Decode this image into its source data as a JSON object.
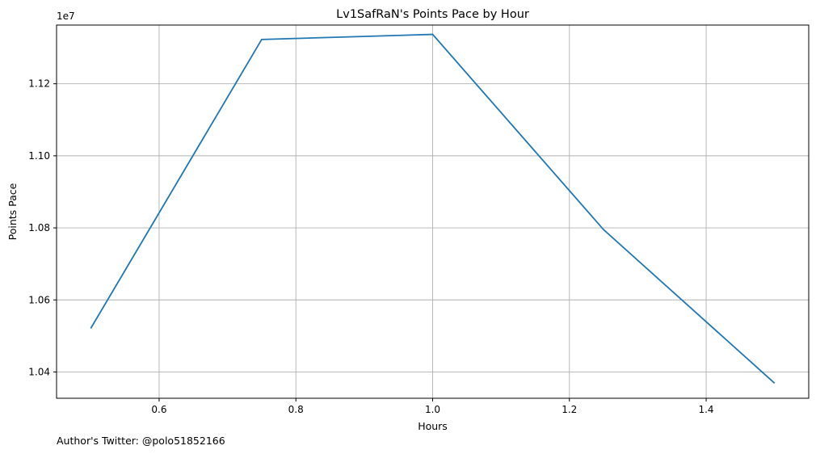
{
  "chart_data": {
    "type": "line",
    "title": "Lv1SafRaN's Points Pace by Hour",
    "xlabel": "Hours",
    "ylabel": "Points Pace",
    "y_offset_label": "1e7",
    "footer": "Author's Twitter: @polo51852166",
    "x": [
      0.5,
      0.75,
      1.0,
      1.25,
      1.5
    ],
    "series": [
      {
        "values": [
          10521000,
          11323000,
          11337000,
          10795000,
          10369000
        ]
      }
    ],
    "xlim": [
      0.45,
      1.55
    ],
    "ylim": [
      10327000,
      11363000
    ],
    "xticks": [
      0.6,
      0.8,
      1.0,
      1.2,
      1.4
    ],
    "xtick_labels": [
      "0.6",
      "0.8",
      "1.0",
      "1.2",
      "1.4"
    ],
    "yticks": [
      10400000,
      10600000,
      10800000,
      11000000,
      11200000
    ],
    "ytick_labels": [
      "1.04",
      "1.06",
      "1.08",
      "1.10",
      "1.12"
    ],
    "grid": true,
    "colors": {
      "line": "#1f77b4",
      "grid": "#b0b0b0",
      "axes": "#000000"
    }
  }
}
